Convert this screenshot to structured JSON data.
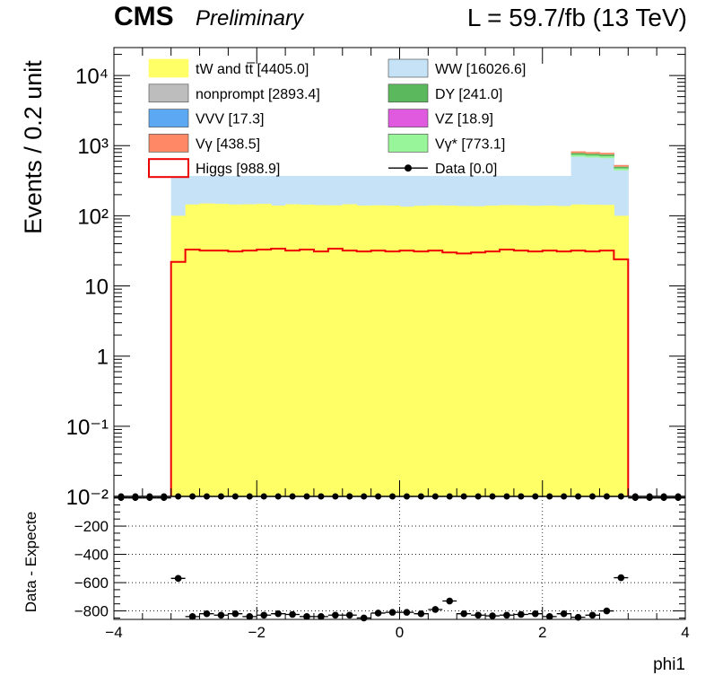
{
  "header": {
    "experiment": "CMS",
    "status": "Preliminary",
    "luminosity": "L = 59.7/fb (13 TeV)"
  },
  "legend": [
    {
      "label": "tW and tt̅ [4405.0]",
      "color": "#ffff66",
      "kind": "fill"
    },
    {
      "label": "WW [16026.6]",
      "color": "#c6e2f7",
      "kind": "fill"
    },
    {
      "label": "nonprompt [2893.4]",
      "color": "#bdbdbd",
      "kind": "fill"
    },
    {
      "label": "DY [241.0]",
      "color": "#5cb85c",
      "kind": "fill"
    },
    {
      "label": "VVV [17.3]",
      "color": "#5ca8f2",
      "kind": "fill"
    },
    {
      "label": "VZ [18.9]",
      "color": "#e05ae0",
      "kind": "fill"
    },
    {
      "label": "Vγ [438.5]",
      "color": "#ff8866",
      "kind": "fill"
    },
    {
      "label": "Vγ* [773.1]",
      "color": "#99f599",
      "kind": "fill"
    },
    {
      "label": "Higgs [988.9]",
      "color": "#ee0000",
      "kind": "line"
    },
    {
      "label": "Data [0.0]",
      "color": "#000000",
      "kind": "marker"
    }
  ],
  "chart_data": [
    {
      "type": "area",
      "title": "",
      "xlabel": "",
      "ylabel": "Events / 0.2 unit",
      "xlim": [
        -4,
        4
      ],
      "ylim": [
        0.01,
        25000
      ],
      "yscale": "log",
      "bin_width": 0.2,
      "y_tick_labels": [
        "10⁻¹",
        "1",
        "10",
        "10²",
        "10³",
        "10⁴"
      ],
      "y_tick_values": [
        0.1,
        1,
        10,
        100,
        1000,
        10000
      ],
      "lowest_tick_partial": "10⁻²",
      "bins_x_low": [
        -3.2,
        -3.0,
        -2.8,
        -2.6,
        -2.4,
        -2.2,
        -2.0,
        -1.8,
        -1.6,
        -1.4,
        -1.2,
        -1.0,
        -0.8,
        -0.6,
        -0.4,
        -0.2,
        0.0,
        0.2,
        0.4,
        0.6,
        0.8,
        1.0,
        1.2,
        1.4,
        1.6,
        1.8,
        2.0,
        2.2,
        2.4,
        2.6,
        2.8,
        3.0
      ],
      "series": [
        {
          "name": "tW and tt̅ [4405.0]",
          "values": [
            100,
            145,
            150,
            148,
            145,
            146,
            148,
            140,
            146,
            144,
            142,
            141,
            146,
            140,
            141,
            140,
            135,
            139,
            141,
            140,
            138,
            137,
            140,
            142,
            141,
            139,
            140,
            138,
            145,
            144,
            143,
            100
          ]
        },
        {
          "name": "WW [16026.6]",
          "values": [
            360,
            370,
            370,
            370,
            370,
            370,
            370,
            370,
            370,
            370,
            370,
            370,
            370,
            370,
            370,
            370,
            370,
            370,
            370,
            370,
            370,
            370,
            370,
            370,
            370,
            370,
            370,
            370,
            830,
            810,
            790,
            530
          ]
        },
        {
          "name": "Higgs [988.9]",
          "values": [
            22,
            33,
            32,
            32,
            31,
            32,
            33,
            34,
            32,
            33,
            31,
            34,
            32,
            31,
            32,
            31,
            32,
            31,
            32,
            30,
            29,
            30,
            31,
            33,
            32,
            31,
            32,
            31,
            32,
            31,
            32,
            24
          ]
        }
      ],
      "stack_order": [
        "tW and tt̅ [4405.0]",
        "WW [16026.6]"
      ],
      "overlay": "Higgs [988.9]"
    },
    {
      "type": "scatter",
      "title": "",
      "xlabel": "phi1",
      "ylabel": "Data - Expecte",
      "xlim": [
        -4,
        4
      ],
      "ylim": [
        -860,
        10
      ],
      "x_tick_values": [
        -4,
        -2,
        0,
        2,
        4
      ],
      "x_tick_labels": [
        "−4",
        "−2",
        "0",
        "2",
        "4"
      ],
      "y_tick_values": [
        -800,
        -600,
        -400,
        -200
      ],
      "y_tick_labels": [
        "−800",
        "−600",
        "−400",
        "−200"
      ],
      "grid": true,
      "x": [
        -3.1,
        -2.9,
        -2.7,
        -2.5,
        -2.3,
        -2.1,
        -1.9,
        -1.7,
        -1.5,
        -1.3,
        -1.1,
        -0.9,
        -0.7,
        -0.5,
        -0.3,
        -0.1,
        0.1,
        0.3,
        0.5,
        0.7,
        0.9,
        1.1,
        1.3,
        1.5,
        1.7,
        1.9,
        2.1,
        2.3,
        2.5,
        2.7,
        2.9,
        3.1
      ],
      "values": [
        -570,
        -840,
        -820,
        -830,
        -820,
        -840,
        -830,
        -820,
        -825,
        -840,
        -840,
        -830,
        -830,
        -850,
        -815,
        -810,
        -810,
        -820,
        -790,
        -730,
        -820,
        -830,
        -835,
        -830,
        -825,
        -820,
        -840,
        -820,
        -845,
        -830,
        -800,
        -565
      ],
      "data_main_x": [
        -3.9,
        -3.7,
        -3.5,
        -3.3,
        3.3,
        3.5,
        3.7,
        3.9
      ],
      "data_ratio_zero_x": [
        -3.9,
        -3.7,
        -3.5,
        -3.3,
        3.3,
        3.5,
        3.7,
        3.9
      ]
    }
  ]
}
